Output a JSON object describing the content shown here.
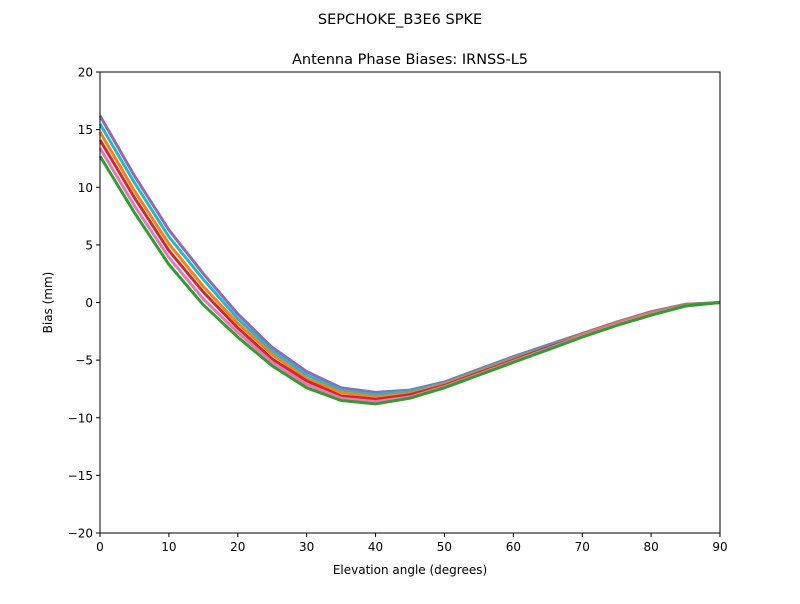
{
  "chart_data": {
    "type": "line",
    "suptitle": "SEPCHOKE_B3E6   SPKE",
    "title": "Antenna Phase Biases: IRNSS-L5",
    "xlabel": "Elevation angle (degrees)",
    "ylabel": "Bias (mm)",
    "xlim": [
      0,
      90
    ],
    "ylim": [
      -20,
      20
    ],
    "xticks": [
      0,
      10,
      20,
      30,
      40,
      50,
      60,
      70,
      80,
      90
    ],
    "yticks": [
      -20,
      -15,
      -10,
      -5,
      0,
      5,
      10,
      15,
      20
    ],
    "xtick_labels": [
      "0",
      "10",
      "20",
      "30",
      "40",
      "50",
      "60",
      "70",
      "80",
      "90"
    ],
    "ytick_labels": [
      "−20",
      "−15",
      "−10",
      "−5",
      "0",
      "5",
      "10",
      "15",
      "20"
    ],
    "grid": false,
    "x": [
      0,
      5,
      10,
      15,
      20,
      25,
      30,
      35,
      40,
      45,
      50,
      55,
      60,
      65,
      70,
      75,
      80,
      85,
      90
    ],
    "colors": [
      "#2ca02c",
      "#e377c2",
      "#d62728",
      "#ff7f0e",
      "#17becf",
      "#9467bd"
    ],
    "series": [
      {
        "values": [
          12.7,
          7.8,
          3.3,
          -0.2,
          -3.0,
          -5.5,
          -7.4,
          -8.5,
          -8.8,
          -8.3,
          -7.4,
          -6.3,
          -5.2,
          -4.1,
          -3.0,
          -2.0,
          -1.1,
          -0.3,
          0
        ]
      },
      {
        "values": [
          13.4,
          8.4,
          3.9,
          0.3,
          -2.6,
          -5.2,
          -7.1,
          -8.3,
          -8.6,
          -8.2,
          -7.3,
          -6.2,
          -5.1,
          -4.0,
          -2.9,
          -1.9,
          -1.0,
          -0.27,
          0
        ]
      },
      {
        "values": [
          14.1,
          9.1,
          4.5,
          0.9,
          -2.2,
          -4.9,
          -6.8,
          -8.1,
          -8.4,
          -8.0,
          -7.2,
          -6.1,
          -5.0,
          -3.9,
          -2.9,
          -1.9,
          -1.0,
          -0.24,
          0
        ]
      },
      {
        "values": [
          14.8,
          9.7,
          5.1,
          1.4,
          -1.8,
          -4.5,
          -6.6,
          -7.8,
          -8.2,
          -7.9,
          -7.1,
          -6.0,
          -4.9,
          -3.9,
          -2.8,
          -1.8,
          -0.9,
          -0.21,
          0
        ]
      },
      {
        "values": [
          15.5,
          10.4,
          5.7,
          2.0,
          -1.4,
          -4.2,
          -6.3,
          -7.6,
          -8.0,
          -7.7,
          -7.0,
          -5.9,
          -4.8,
          -3.8,
          -2.8,
          -1.8,
          -0.9,
          -0.18,
          0
        ]
      },
      {
        "values": [
          16.2,
          11.0,
          6.3,
          2.5,
          -1.0,
          -3.9,
          -6.0,
          -7.4,
          -7.8,
          -7.6,
          -6.9,
          -5.8,
          -4.7,
          -3.7,
          -2.7,
          -1.7,
          -0.8,
          -0.15,
          0
        ]
      }
    ]
  }
}
